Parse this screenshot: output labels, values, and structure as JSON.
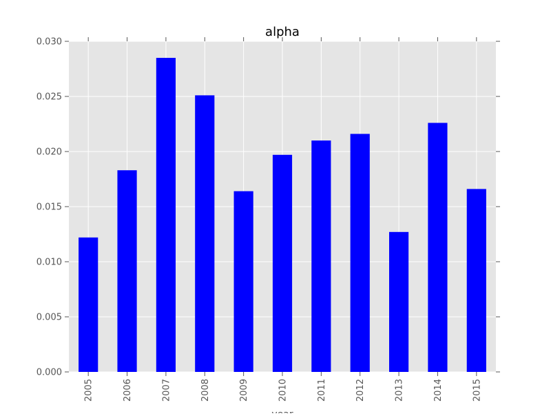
{
  "chart_data": {
    "type": "bar",
    "title": "alpha",
    "xlabel": "year",
    "ylabel": "",
    "categories": [
      "2005",
      "2006",
      "2007",
      "2008",
      "2009",
      "2010",
      "2011",
      "2012",
      "2013",
      "2014",
      "2015"
    ],
    "values": [
      0.0122,
      0.0183,
      0.0285,
      0.0251,
      0.0164,
      0.0197,
      0.021,
      0.0216,
      0.0127,
      0.0226,
      0.0166
    ],
    "ylim": [
      0,
      0.03
    ],
    "yticks": [
      "0.000",
      "0.005",
      "0.010",
      "0.015",
      "0.020",
      "0.025",
      "0.030"
    ],
    "grid": true,
    "colors": {
      "bar": "#0000ff",
      "plot_background": "#e5e5e5",
      "grid": "#ffffff",
      "tick_label": "#555555"
    }
  }
}
